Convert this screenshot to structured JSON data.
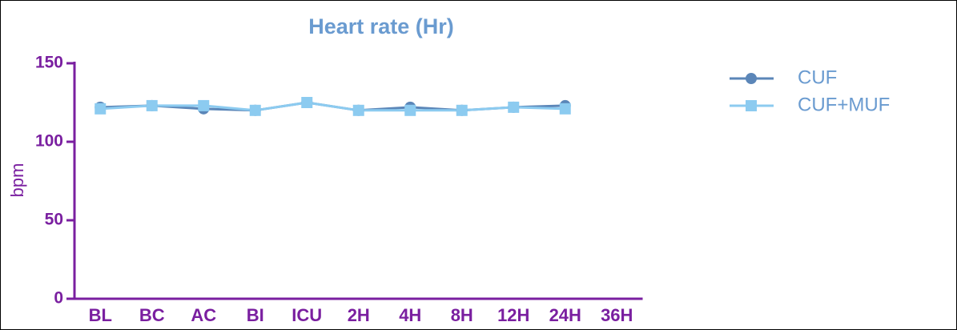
{
  "chart_data": {
    "type": "line",
    "title": "Heart rate (Hr)",
    "y_label": "bpm",
    "categories": [
      "BL",
      "BC",
      "AC",
      "BI",
      "ICU",
      "2H",
      "4H",
      "8H",
      "12H",
      "24H",
      "36H"
    ],
    "series": [
      {
        "name": "CUF",
        "color": "#5b86b8",
        "marker": "circle",
        "values": [
          122,
          123,
          121,
          120,
          125,
          120,
          122,
          120,
          122,
          123,
          null
        ]
      },
      {
        "name": "CUF+MUF",
        "color": "#8ccbf0",
        "marker": "square",
        "values": [
          121,
          123,
          123,
          120,
          125,
          120,
          120,
          120,
          122,
          121,
          null
        ]
      }
    ],
    "ylim": [
      0,
      150
    ],
    "yticks": [
      0,
      50,
      100,
      150
    ],
    "axis_color": "#7a1fa0",
    "title_color": "#6a9bd0",
    "legend": "upper right"
  }
}
